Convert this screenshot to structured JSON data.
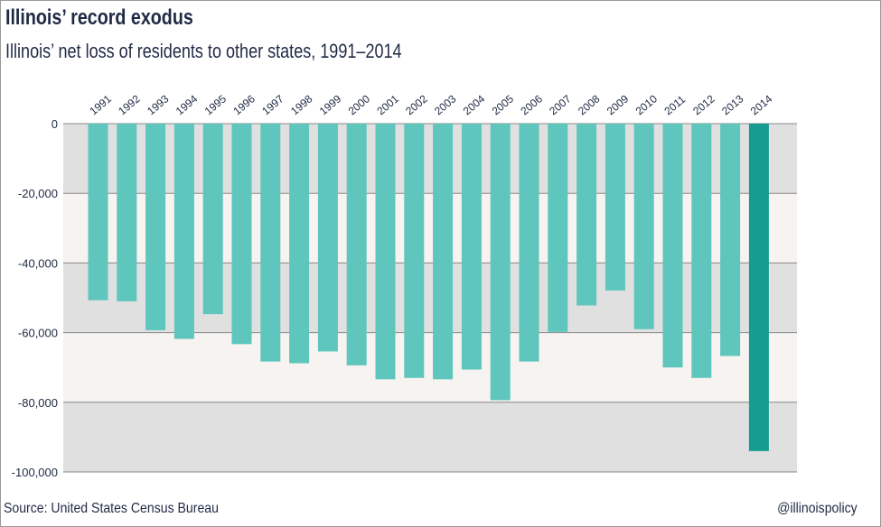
{
  "title": "Illinois’ record exodus",
  "subtitle": "Illinois’ net loss of residents to other states, 1991–2014",
  "footer": {
    "source": "Source: United States Census Bureau",
    "handle": "@illinoispolicy"
  },
  "colors": {
    "bar": "#5ec6bd",
    "highlight": "#169c91",
    "band_dark": "#e0e0e0",
    "band_light": "#f6f3f0",
    "grid": "#8a8a8a",
    "text": "#1f2a44"
  },
  "chart_data": {
    "type": "bar",
    "categories": [
      "1991",
      "1992",
      "1993",
      "1994",
      "1995",
      "1996",
      "1997",
      "1998",
      "1999",
      "2000",
      "2001",
      "2002",
      "2003",
      "2004",
      "2005",
      "2006",
      "2007",
      "2008",
      "2009",
      "2010",
      "2011",
      "2012",
      "2013",
      "2014"
    ],
    "values": [
      -50700,
      -51000,
      -59300,
      -61800,
      -54700,
      -63300,
      -68300,
      -68800,
      -65400,
      -69400,
      -73400,
      -73000,
      -73400,
      -70600,
      -79400,
      -68300,
      -59800,
      -52200,
      -47900,
      -59000,
      -70000,
      -73000,
      -66700,
      -94000
    ],
    "highlight_index": 23,
    "y_ticks": [
      0,
      -20000,
      -40000,
      -60000,
      -80000,
      -100000
    ],
    "y_tick_labels": [
      "0",
      "-20,000",
      "-40,000",
      "-60,000",
      "-80,000",
      "-100,000"
    ],
    "ylim": [
      -100000,
      0
    ],
    "grid": true,
    "xlabel": "",
    "ylabel": ""
  }
}
